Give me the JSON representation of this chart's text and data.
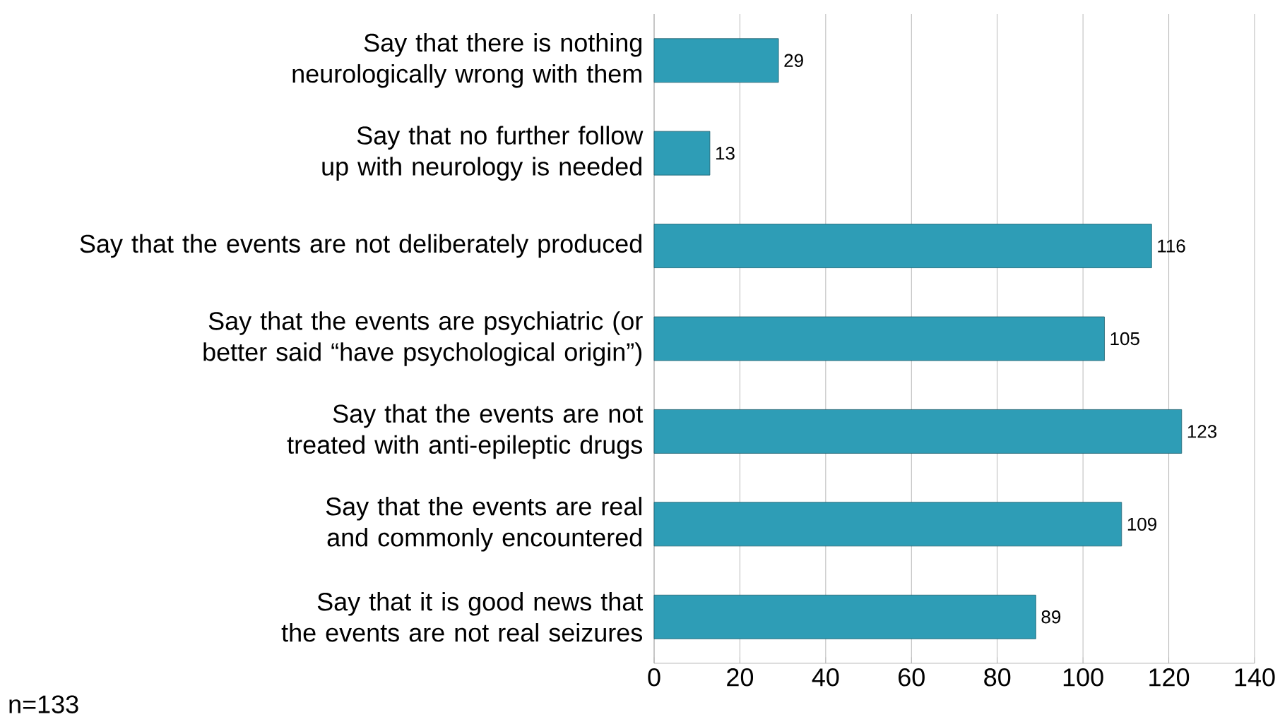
{
  "chart_data": {
    "type": "bar",
    "orientation": "horizontal",
    "categories": [
      "Say that there is nothing neurologically wrong with them",
      "Say that no further follow up with neurology is needed",
      "Say that the events are not deliberately produced",
      "Say that the events are psychiatric (or better said “have psychological origin”)",
      "Say that the events are not treated with anti-epileptic drugs",
      "Say that the events are real and commonly encountered",
      "Say that it is good news that the events are not real seizures"
    ],
    "values": [
      29,
      13,
      116,
      105,
      123,
      109,
      89
    ],
    "color": "#2e9db6",
    "xlim": [
      0,
      140
    ],
    "xticks": [
      0,
      20,
      40,
      60,
      80,
      100,
      120,
      140
    ],
    "grid": "x",
    "data_labels": true,
    "annotations": [
      "n=133"
    ]
  }
}
